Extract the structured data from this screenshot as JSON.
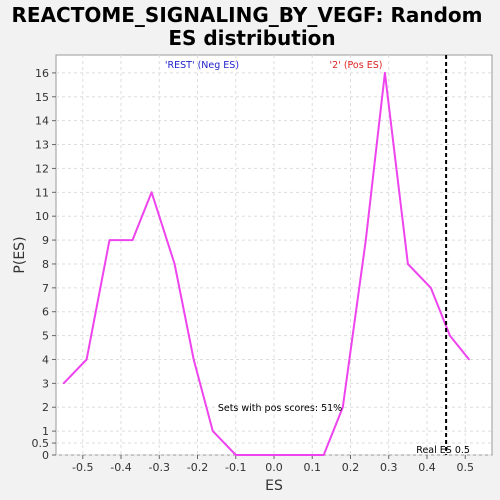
{
  "chart_data": {
    "type": "line",
    "title_lines": [
      "REACTOME_SIGNALING_BY_VEGF: Random",
      "ES distribution"
    ],
    "xlabel": "ES",
    "ylabel": "P(ES)",
    "xlim": [
      -0.57,
      0.57
    ],
    "ylim": [
      0,
      16.75
    ],
    "xticks": [
      -0.5,
      -0.4,
      -0.3,
      -0.2,
      -0.1,
      0,
      0.1,
      0.2,
      0.3,
      0.4,
      0.5
    ],
    "xtick_labels": [
      "-0.5",
      "-0.4",
      "-0.3",
      "-0.2",
      "-0.1",
      "0.0",
      "0.1",
      "0.2",
      "0.3",
      "0.4",
      "0.5"
    ],
    "yticks": [
      0,
      0.5,
      1,
      2,
      3,
      4,
      5,
      6,
      7,
      8,
      9,
      10,
      11,
      12,
      13,
      14,
      15,
      16
    ],
    "ytick_labels": [
      "0",
      "0.5",
      "1",
      "2",
      "3",
      "4",
      "5",
      "6",
      "7",
      "8",
      "9",
      "10",
      "11",
      "12",
      "13",
      "14",
      "15",
      "16"
    ],
    "grid": true,
    "series": [
      {
        "color": "#ee44ee",
        "x": [
          -0.55,
          -0.49,
          -0.43,
          -0.37,
          -0.32,
          -0.26,
          -0.21,
          -0.16,
          -0.1,
          -0.04,
          0.01,
          0.07,
          0.13,
          0.18,
          0.24,
          0.29,
          0.35,
          0.41,
          0.46,
          0.51
        ],
        "y": [
          3,
          4,
          9,
          9,
          11,
          8,
          4,
          1,
          0,
          0,
          0,
          0,
          0,
          2,
          9,
          16,
          8,
          7,
          5,
          4
        ]
      }
    ],
    "reference_line": {
      "x": 0.45,
      "label": "Real ES 0.5",
      "color": "#000000"
    },
    "annotations": {
      "neg_label": "'REST' (Neg ES)",
      "neg_color": "#2222cc",
      "pos_label": "'2' (Pos ES)",
      "pos_color": "#dd2222",
      "pos_scores": "Sets with pos scores: 51%"
    }
  }
}
